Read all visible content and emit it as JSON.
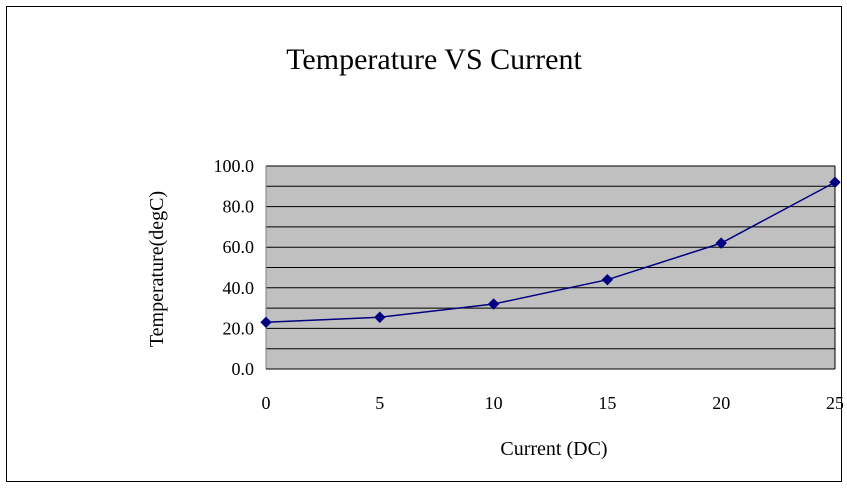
{
  "chart_data": {
    "type": "line",
    "title": "Temperature VS Current",
    "xlabel": "Current (DC)",
    "ylabel": "Temperature(degC)",
    "x": [
      0,
      5,
      10,
      15,
      20,
      25
    ],
    "x_tick_labels": [
      "0",
      "5",
      "10",
      "15",
      "20",
      "25"
    ],
    "y_tick_labels": [
      "0.0",
      "20.0",
      "40.0",
      "60.0",
      "80.0",
      "100.0"
    ],
    "y_ticks": [
      0,
      20,
      40,
      60,
      80,
      100
    ],
    "series": [
      {
        "values": [
          23.0,
          25.5,
          32.0,
          44.0,
          62.0,
          92.0
        ],
        "color": "#000080",
        "marker": "diamond"
      }
    ],
    "xlim": [
      0,
      25
    ],
    "ylim": [
      0,
      100
    ],
    "grid": true,
    "minor_grid": true,
    "plot_background": "#c0c0c0",
    "legend": "none"
  }
}
